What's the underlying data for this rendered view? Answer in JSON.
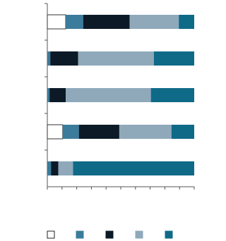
{
  "chart_data": {
    "type": "stacked-bar-horizontal",
    "categories": [
      null,
      null,
      null,
      null,
      null
    ],
    "series": [
      {
        "color": "#ffffff",
        "values": [
          12.5,
          0,
          0,
          10.5,
          0
        ]
      },
      {
        "color": "#3b7b9b",
        "values": [
          12,
          2,
          1.5,
          11,
          2.5
        ]
      },
      {
        "color": "#0b1a26",
        "values": [
          31.5,
          19,
          11,
          27.5,
          5
        ]
      },
      {
        "color": "#8fa9bb",
        "values": [
          33.5,
          51.5,
          58,
          35.5,
          10
        ]
      },
      {
        "color": "#0f6a88",
        "values": [
          10.5,
          27.5,
          29.5,
          15.5,
          82.5
        ]
      }
    ],
    "xlim": [
      0,
      100
    ],
    "xticks": [
      0,
      10,
      20,
      30,
      40,
      50,
      60,
      70,
      80,
      90,
      100
    ]
  }
}
